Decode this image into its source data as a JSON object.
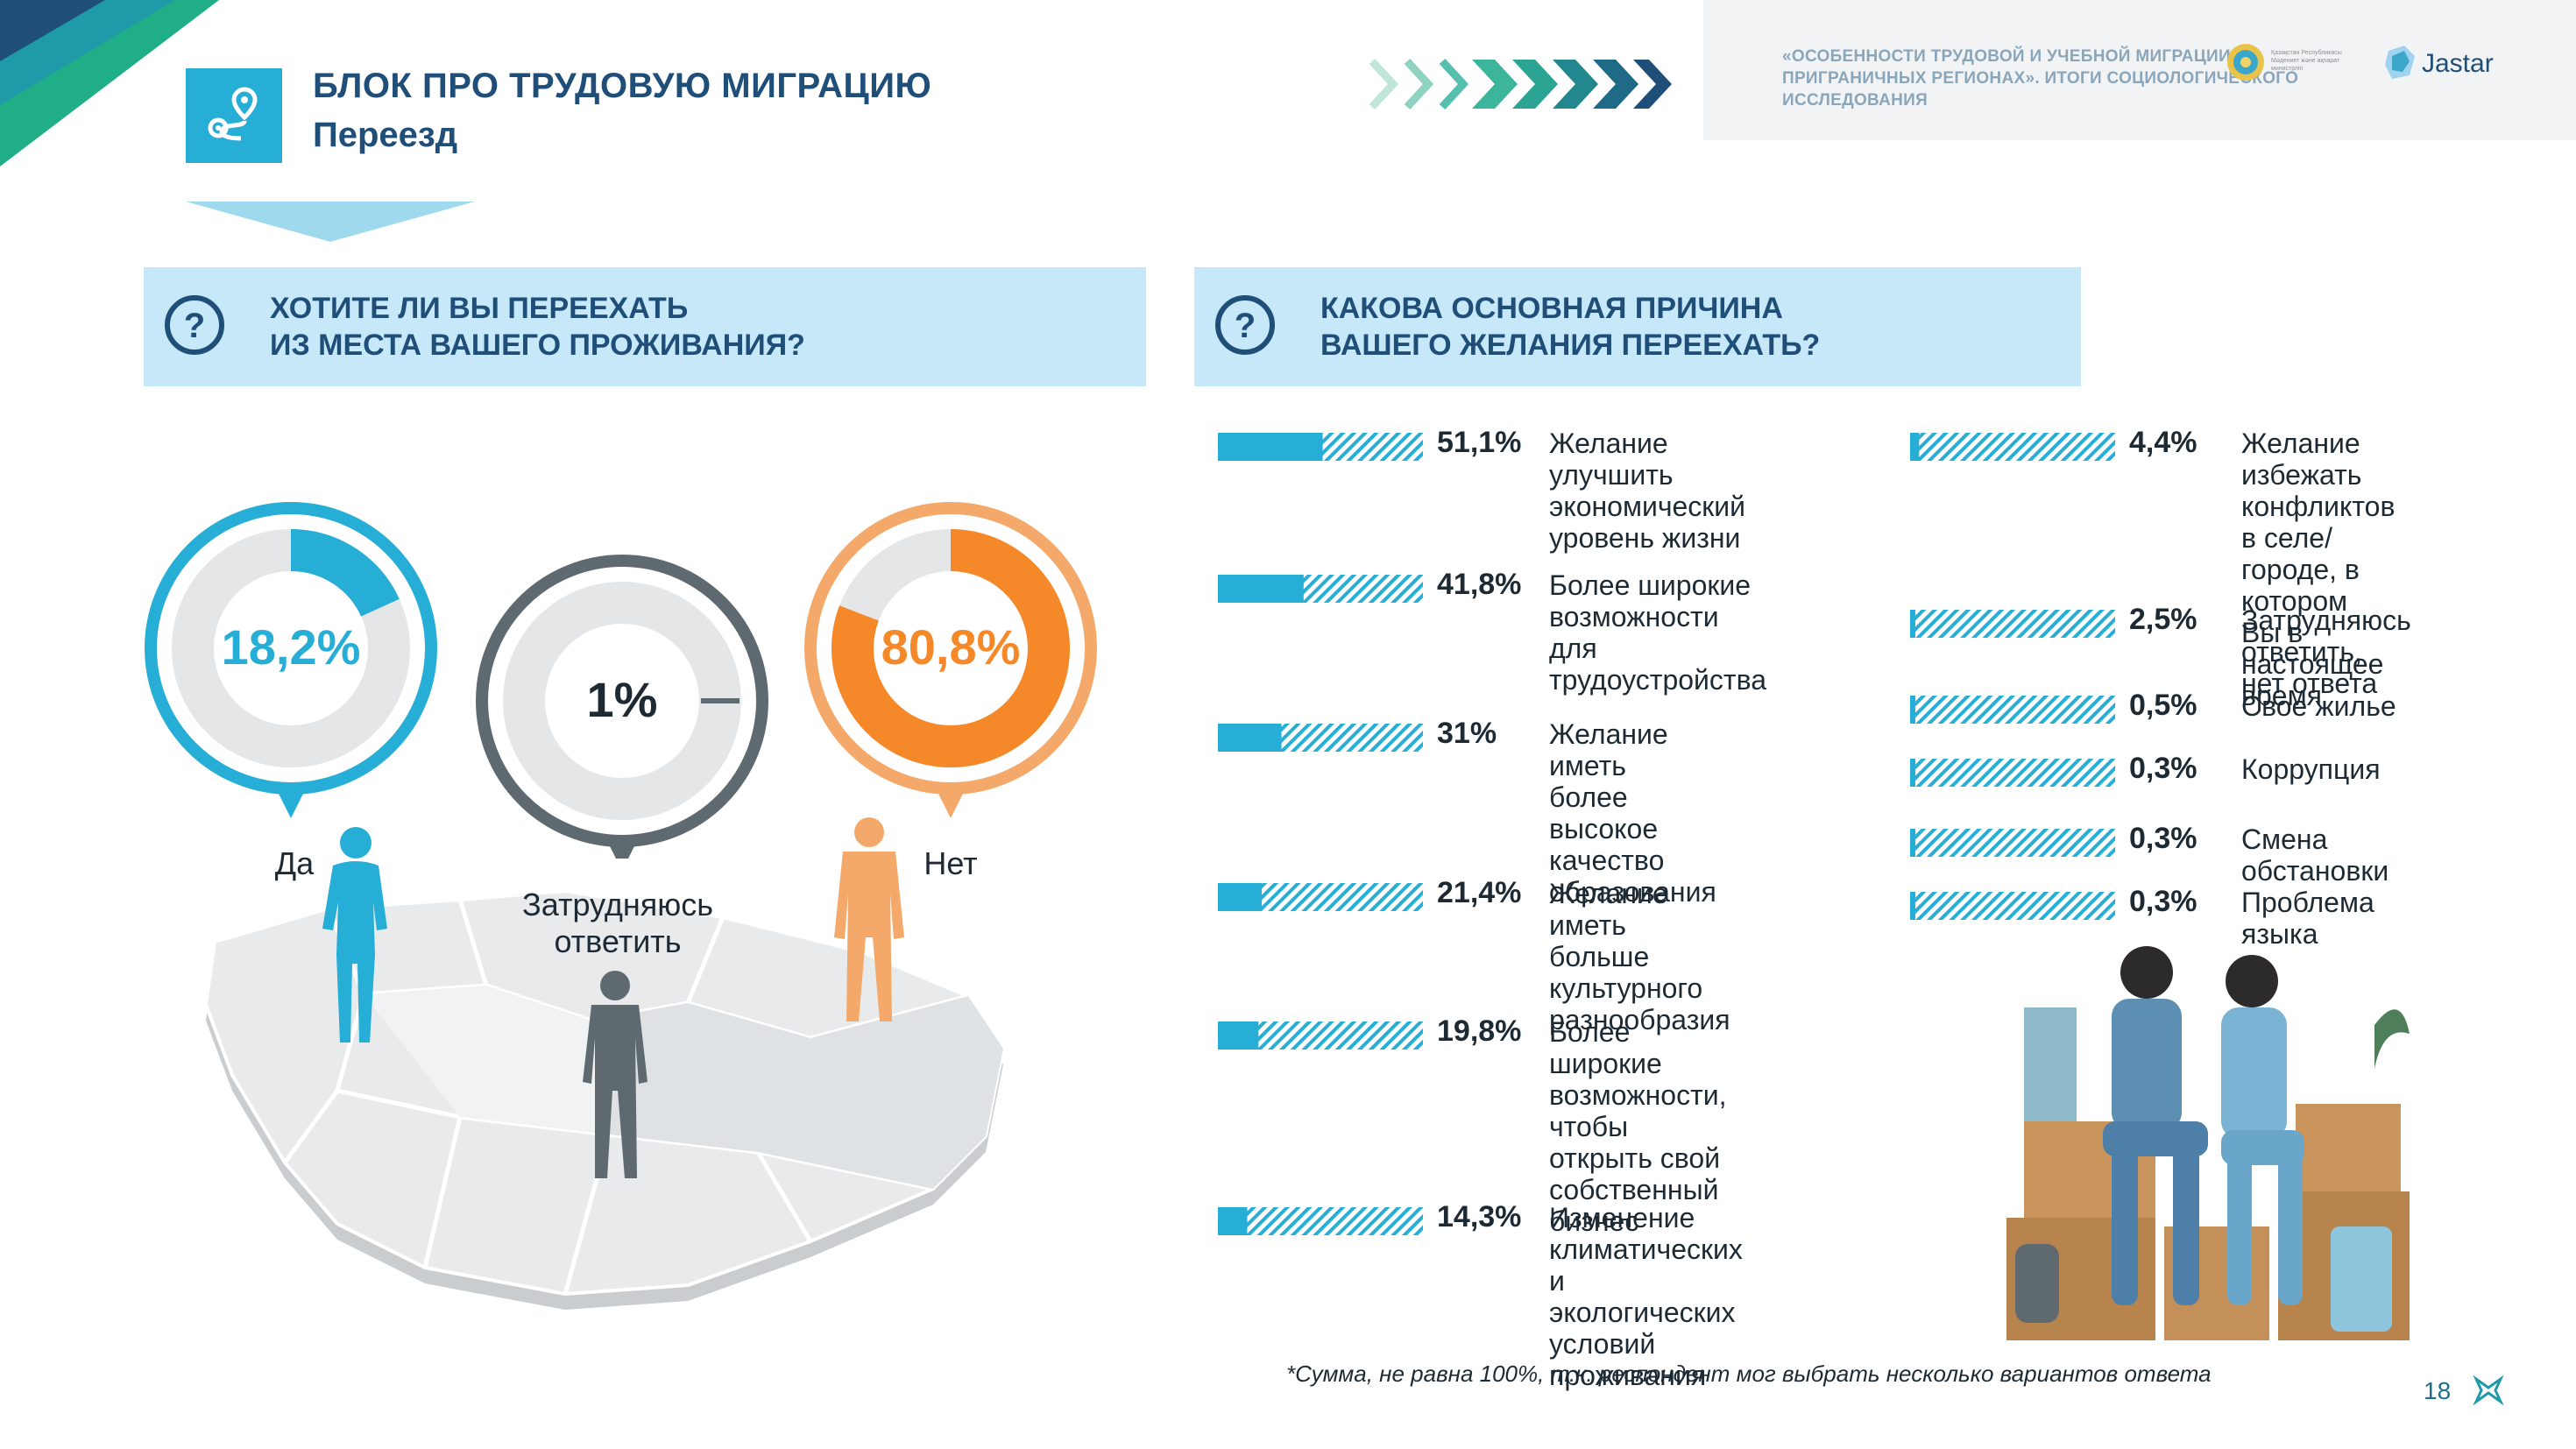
{
  "header": {
    "title": "БЛОК ПРО ТРУДОВУЮ МИГРАЦИЮ",
    "subtitle": "Переезд",
    "icon": "route-pin-icon"
  },
  "top_right": {
    "project_title": "«ОСОБЕННОСТИ ТРУДОВОЙ И УЧЕБНОЙ МИГРАЦИИ В ПРИГРАНИЧНЫХ РЕГИОНАХ». ИТОГИ СОЦИОЛОГИЧЕСКОГО ИССЛЕДОВАНИЯ",
    "ministry_text": "Қазақстан Республикасы Мәдениет және ақпарат министрлігі",
    "logo_text": "Jastar"
  },
  "colors": {
    "navy": "#1f4e79",
    "cyan": "#27aed6",
    "orange": "#f5892a",
    "gray": "#5f6a70",
    "light_blue": "#c6e8f8"
  },
  "question_left": {
    "line1": "ХОТИТЕ ЛИ ВЫ ПЕРЕЕХАТЬ",
    "line2": "ИЗ МЕСТА ВАШЕГО ПРОЖИВАНИЯ?"
  },
  "question_right": {
    "line1": "КАКОВА ОСНОВНАЯ ПРИЧИНА",
    "line2": "ВАШЕГО ЖЕЛАНИЯ ПЕРЕЕХАТЬ?"
  },
  "chart_data": [
    {
      "type": "pie",
      "categories": [
        "Да",
        "Затрудняюсь ответить",
        "Нет"
      ],
      "category_lines": [
        [
          "Да"
        ],
        [
          "Затрудняюсь",
          "ответить"
        ],
        [
          "Нет"
        ]
      ],
      "values": [
        18.2,
        1,
        80.8
      ],
      "value_labels": [
        "18,2%",
        "1%",
        "80,8%"
      ],
      "colors": [
        "#27aed6",
        "#5f6a70",
        "#f5892a"
      ],
      "unit": "%"
    },
    {
      "type": "bar",
      "orientation": "horizontal",
      "xlim": [
        0,
        100
      ],
      "unit": "%",
      "items": [
        {
          "value": 51.1,
          "label": "51,1%",
          "text": "Желание улучшить\nэкономический\nуровень жизни"
        },
        {
          "value": 41.8,
          "label": "41,8%",
          "text": "Более широкие\nвозможности\nдля трудоустройства"
        },
        {
          "value": 31,
          "label": "31%",
          "text": "Желание иметь\nболее высокое\nкачество\nобразования"
        },
        {
          "value": 21.4,
          "label": "21,4%",
          "text": "Желание иметь\nбольше культурного\nразнообразия"
        },
        {
          "value": 19.8,
          "label": "19,8%",
          "text": "Более широкие\nвозможности,\nчтобы открыть свой\nсобственный бизнес"
        },
        {
          "value": 14.3,
          "label": "14,3%",
          "text": "Изменение\nклиматических\nи экологических\nусловий проживания"
        },
        {
          "value": 4.4,
          "label": "4,4%",
          "text": "Желание избежать\nконфликтов в селе/\nгороде, в котором\nВы в настоящее\nвремя"
        },
        {
          "value": 2.5,
          "label": "2,5%",
          "text": "Затрудняюсь\nответить, нет ответа"
        },
        {
          "value": 0.5,
          "label": "0,5%",
          "text": "Свое жилье"
        },
        {
          "value": 0.3,
          "label": "0,3%",
          "text": "Коррупция"
        },
        {
          "value": 0.3,
          "label": "0,3%",
          "text": "Смена обстановки"
        },
        {
          "value": 0.3,
          "label": "0,3%",
          "text": "Проблема языка"
        }
      ]
    }
  ],
  "footnote": "*Сумма, не равна 100%, т.к. респондент мог выбрать несколько вариантов ответа",
  "page_number": "18"
}
